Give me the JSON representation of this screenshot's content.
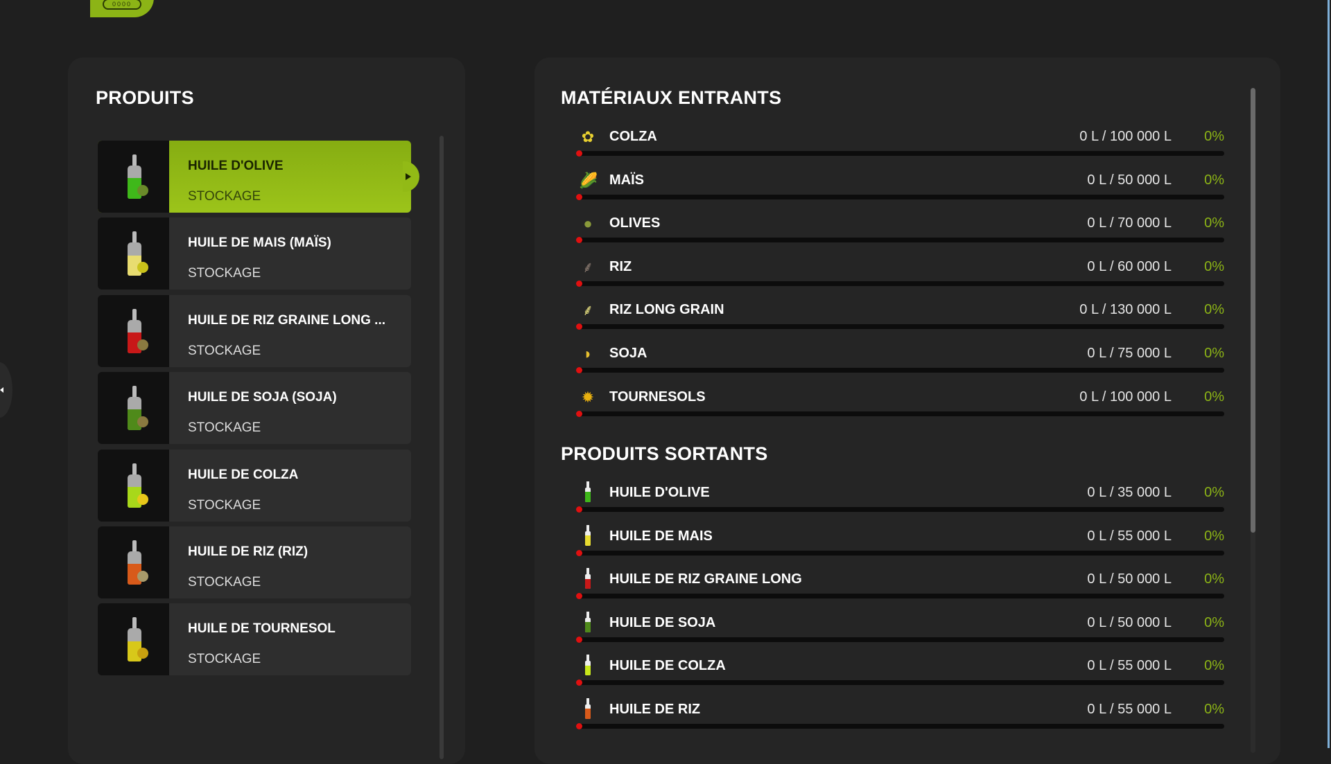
{
  "header": {
    "logo_icon": "conveyor-icon",
    "logo_text": "0000"
  },
  "left_panel": {
    "title": "PRODUITS",
    "items": [
      {
        "name": "HUILE D'OLIVE",
        "sub": "STOCKAGE",
        "liquid": "#3fb81a",
        "deco": "#6a8a2a",
        "active": true
      },
      {
        "name": "HUILE DE MAIS (MAÏS)",
        "sub": "STOCKAGE",
        "liquid": "#e8dc70",
        "deco": "#c9c21a"
      },
      {
        "name": "HUILE DE RIZ GRAINE LONG ...",
        "sub": "STOCKAGE",
        "liquid": "#c81818",
        "deco": "#8a7a40"
      },
      {
        "name": "HUILE DE SOJA (SOJA)",
        "sub": "STOCKAGE",
        "liquid": "#4f8a1a",
        "deco": "#8a7a40"
      },
      {
        "name": "HUILE DE COLZA",
        "sub": "STOCKAGE",
        "liquid": "#a8d81a",
        "deco": "#e8c81a"
      },
      {
        "name": "HUILE DE RIZ (RIZ)",
        "sub": "STOCKAGE",
        "liquid": "#d85a1a",
        "deco": "#a89a6a"
      },
      {
        "name": "HUILE DE TOURNESOL",
        "sub": "STOCKAGE",
        "liquid": "#d8c81a",
        "deco": "#c8a010"
      }
    ]
  },
  "inputs": {
    "title": "MATÉRIAUX ENTRANTS",
    "rows": [
      {
        "label": "COLZA",
        "amount": "0 L / 100 000 L",
        "percent": "0%",
        "fill": 0,
        "icon": "rapeseed-icon",
        "glyph": "✿",
        "color": "#e8d030"
      },
      {
        "label": "MAÏS",
        "amount": "0 L / 50 000 L",
        "percent": "0%",
        "fill": 0,
        "icon": "corn-icon",
        "glyph": "🌽",
        "color": "#e8d030"
      },
      {
        "label": "OLIVES",
        "amount": "0 L / 70 000 L",
        "percent": "0%",
        "fill": 0,
        "icon": "olives-icon",
        "glyph": "●",
        "color": "#8a9a3a"
      },
      {
        "label": "RIZ",
        "amount": "0 L / 60 000 L",
        "percent": "0%",
        "fill": 0,
        "icon": "rice-icon",
        "glyph": "⸙",
        "color": "#8a7a70"
      },
      {
        "label": "RIZ LONG GRAIN",
        "amount": "0 L / 130 000 L",
        "percent": "0%",
        "fill": 0,
        "icon": "long-grain-rice-icon",
        "glyph": "⸙",
        "color": "#e8e080"
      },
      {
        "label": "SOJA",
        "amount": "0 L / 75 000 L",
        "percent": "0%",
        "fill": 0,
        "icon": "soybean-icon",
        "glyph": "◗",
        "color": "#e8c030"
      },
      {
        "label": "TOURNESOLS",
        "amount": "0 L / 100 000 L",
        "percent": "0%",
        "fill": 0,
        "icon": "sunflower-icon",
        "glyph": "✹",
        "color": "#e8b010"
      }
    ]
  },
  "outputs": {
    "title": "PRODUITS SORTANTS",
    "rows": [
      {
        "label": "HUILE D'OLIVE",
        "amount": "0 L / 35 000 L",
        "percent": "0%",
        "fill": 0,
        "liquid": "#3fb81a"
      },
      {
        "label": "HUILE DE MAIS",
        "amount": "0 L / 55 000 L",
        "percent": "0%",
        "fill": 0,
        "liquid": "#e8dc30"
      },
      {
        "label": "HUILE DE RIZ GRAINE LONG",
        "amount": "0 L / 50 000 L",
        "percent": "0%",
        "fill": 0,
        "liquid": "#c81818"
      },
      {
        "label": "HUILE DE SOJA",
        "amount": "0 L / 50 000 L",
        "percent": "0%",
        "fill": 0,
        "liquid": "#4f8a1a"
      },
      {
        "label": "HUILE DE COLZA",
        "amount": "0 L / 55 000 L",
        "percent": "0%",
        "fill": 0,
        "liquid": "#c8e81a"
      },
      {
        "label": "HUILE DE RIZ",
        "amount": "0 L / 55 000 L",
        "percent": "0%",
        "fill": 0,
        "liquid": "#d85a1a"
      }
    ]
  },
  "colors": {
    "accent": "#8cb416",
    "bar_marker": "#e01010",
    "panel": "#252525",
    "background": "#1f1f1f"
  }
}
